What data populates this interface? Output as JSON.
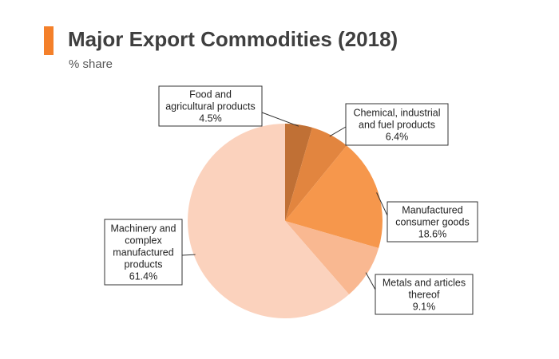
{
  "header": {
    "title": "Major Export Commodities (2018)",
    "subtitle": "% share",
    "accent_color": "#f4802a"
  },
  "chart_data": {
    "type": "pie",
    "title": "Major Export Commodities (2018)",
    "subtitle": "% share",
    "start_angle_deg": 0,
    "direction": "clockwise",
    "slices": [
      {
        "label_lines": [
          "Food and",
          "agricultural products",
          "4.5%"
        ],
        "value": 4.5,
        "color": "#c07035"
      },
      {
        "label_lines": [
          "Chemical, industrial",
          "and fuel products",
          "6.4%"
        ],
        "value": 6.4,
        "color": "#e2853f"
      },
      {
        "label_lines": [
          "Manufactured",
          "consumer goods",
          "18.6%"
        ],
        "value": 18.6,
        "color": "#f6974c"
      },
      {
        "label_lines": [
          "Metals and articles",
          "thereof",
          "9.1%"
        ],
        "value": 9.1,
        "color": "#f9b891"
      },
      {
        "label_lines": [
          "Machinery and",
          "complex",
          "manufactured",
          "products",
          "61.4%"
        ],
        "value": 61.4,
        "color": "#fbd2bd"
      }
    ]
  }
}
